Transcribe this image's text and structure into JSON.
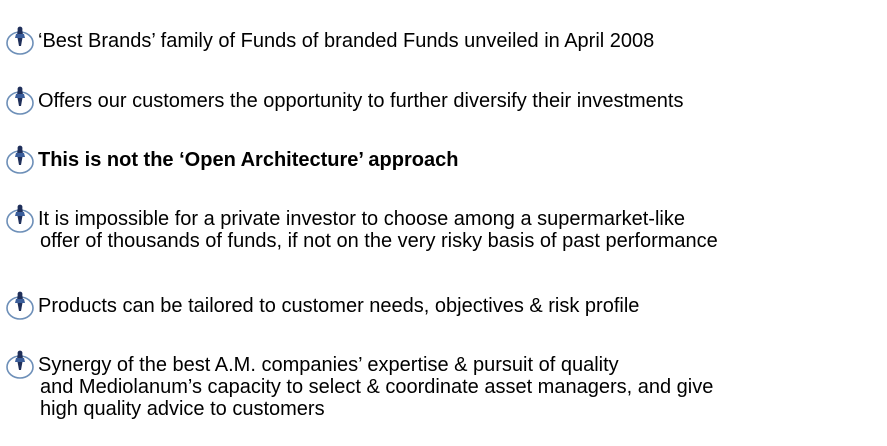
{
  "items": [
    {
      "lines": [
        "‘Best Brands’ family of Funds of branded Funds unveiled in April 2008"
      ]
    },
    {
      "lines": [
        "Offers our customers the opportunity to further diversify their investments"
      ]
    },
    {
      "lines": [
        "This is not the ‘Open Architecture’ approach"
      ],
      "bold": true
    },
    {
      "lines": [
        "It is impossible for a private investor to choose among a supermarket-like",
        "offer of thousands of funds, if not on the very risky basis of past performance"
      ]
    },
    {
      "lines": [
        "Products can be tailored to customer needs, objectives & risk profile"
      ]
    },
    {
      "lines": [
        "Synergy of the best A.M. companies’ expertise & pursuit of quality",
        "and Mediolanum’s capacity to select & coordinate asset managers, and give",
        "high quality advice to customers"
      ]
    }
  ]
}
